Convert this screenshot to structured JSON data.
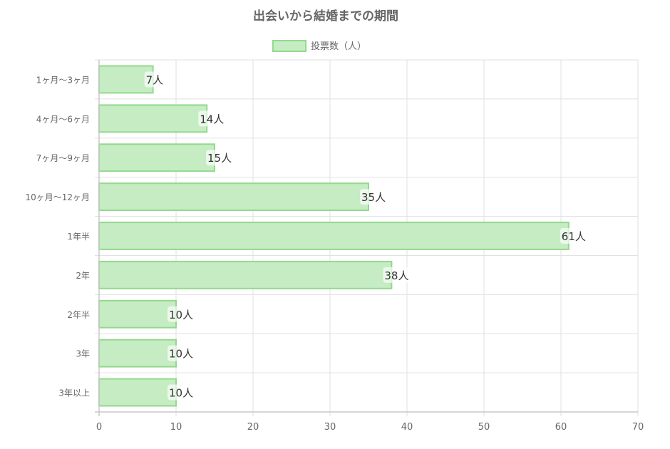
{
  "chart_data": {
    "type": "bar",
    "orientation": "horizontal",
    "title": "出会いから結婚までの期間",
    "categories": [
      "1ヶ月〜3ヶ月",
      "4ヶ月〜6ヶ月",
      "7ヶ月〜9ヶ月",
      "10ヶ月〜12ヶ月",
      "1年半",
      "2年",
      "2年半",
      "3年",
      "3年以上"
    ],
    "series": [
      {
        "name": "投票数（人）",
        "values": [
          7,
          14,
          15,
          35,
          61,
          38,
          10,
          10,
          10
        ]
      }
    ],
    "data_label_suffix": "人",
    "xlim": [
      0,
      70
    ],
    "xticks": [
      0,
      10,
      20,
      30,
      40,
      50,
      60,
      70
    ],
    "grid": true,
    "legend_position": "top",
    "colors": {
      "bar_fill": "#c5ecc2",
      "bar_border": "#93d98d"
    }
  }
}
